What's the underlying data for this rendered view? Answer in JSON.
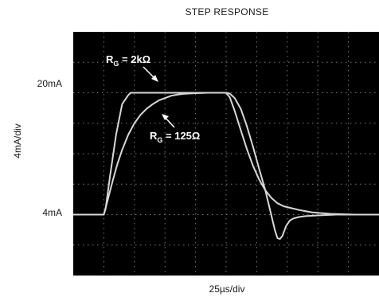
{
  "chart_data": {
    "type": "line",
    "title": "STEP RESPONSE",
    "xlabel": "25µs/div",
    "ylabel": "4mA/div",
    "x_unit": "µs",
    "y_unit": "mA",
    "xlim": [
      0,
      250
    ],
    "ylim": [
      -4,
      28
    ],
    "y_ticks": [
      {
        "value": 20,
        "label": "20mA"
      },
      {
        "value": 4,
        "label": "4mA"
      }
    ],
    "grid": true,
    "background": "#000000",
    "trace_color": "#d8d8d8",
    "series": [
      {
        "name": "R_G = 2kΩ",
        "label_main": "R",
        "label_sub": "G",
        "label_rest": " = 2kΩ",
        "x": [
          0,
          25,
          26.5,
          30,
          35,
          40,
          45,
          47,
          50,
          70,
          100,
          125,
          128,
          132,
          137,
          142,
          147,
          152,
          157,
          162,
          167,
          172,
          177,
          185,
          195,
          210,
          230,
          250
        ],
        "y": [
          4,
          4,
          4.8,
          9,
          14.5,
          18.5,
          19.7,
          20,
          20,
          20,
          20,
          20,
          19.4,
          17.6,
          15.1,
          12.6,
          10.4,
          8.6,
          7.2,
          6.2,
          5.5,
          5.1,
          4.9,
          4.6,
          4.3,
          4.1,
          4,
          4
        ]
      },
      {
        "name": "R_G = 125Ω",
        "label_main": "R",
        "label_sub": "G",
        "label_rest": " = 125Ω",
        "x": [
          0,
          25,
          28,
          32,
          36,
          40,
          45,
          50,
          55,
          60,
          65,
          70,
          75,
          80,
          85,
          90,
          100,
          110,
          120,
          125,
          128,
          132,
          137,
          142,
          147,
          152,
          157,
          160,
          163,
          165,
          167,
          169,
          171,
          174,
          177,
          180,
          185,
          190,
          200,
          215,
          230,
          250
        ],
        "y": [
          4,
          4,
          5.8,
          8.3,
          10.6,
          12.5,
          14.5,
          16,
          17.1,
          17.9,
          18.5,
          19,
          19.3,
          19.6,
          19.75,
          19.85,
          19.95,
          20,
          20,
          20,
          19.9,
          19.3,
          17.9,
          15.6,
          12.9,
          10,
          7.2,
          5.2,
          3.2,
          1.9,
          0.9,
          0.8,
          1.2,
          2.5,
          3.2,
          3.5,
          3.7,
          3.8,
          3.9,
          4,
          4,
          4
        ]
      }
    ]
  }
}
